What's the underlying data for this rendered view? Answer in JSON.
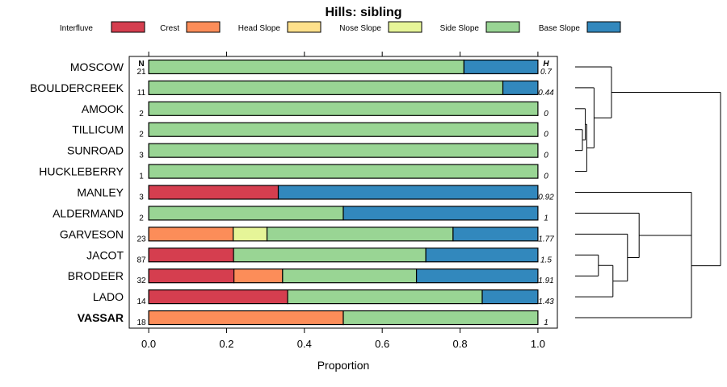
{
  "chart_data": {
    "type": "bar",
    "orientation": "horizontal",
    "stacked": true,
    "title": "Hills: sibling",
    "xlabel": "Proportion",
    "ylabel": "",
    "xlim": [
      -0.05,
      1.05
    ],
    "xticks": [
      "0.0",
      "0.2",
      "0.4",
      "0.6",
      "0.8",
      "1.0"
    ],
    "xtick_values": [
      0,
      0.2,
      0.4,
      0.6,
      0.8,
      1.0
    ],
    "n_header": "N",
    "h_header": "H",
    "legend": [
      {
        "name": "Interfluve",
        "color": "#d53e4f"
      },
      {
        "name": "Crest",
        "color": "#fc8d59"
      },
      {
        "name": "Head Slope",
        "color": "#fee08b"
      },
      {
        "name": "Nose Slope",
        "color": "#e6f598"
      },
      {
        "name": "Side Slope",
        "color": "#99d594"
      },
      {
        "name": "Base Slope",
        "color": "#3288bd"
      }
    ],
    "rows": [
      {
        "label": "MOSCOW",
        "n": "21",
        "h": "0.7",
        "bold": false,
        "values": [
          0,
          0,
          0,
          0,
          0.81,
          0.19
        ]
      },
      {
        "label": "BOULDERCREEK",
        "n": "11",
        "h": "0.44",
        "bold": false,
        "values": [
          0,
          0,
          0,
          0,
          0.91,
          0.09
        ]
      },
      {
        "label": "AMOOK",
        "n": "2",
        "h": "0",
        "bold": false,
        "values": [
          0,
          0,
          0,
          0,
          1.0,
          0
        ]
      },
      {
        "label": "TILLICUM",
        "n": "2",
        "h": "0",
        "bold": false,
        "values": [
          0,
          0,
          0,
          0,
          1.0,
          0
        ]
      },
      {
        "label": "SUNROAD",
        "n": "3",
        "h": "0",
        "bold": false,
        "values": [
          0,
          0,
          0,
          0,
          1.0,
          0
        ]
      },
      {
        "label": "HUCKLEBERRY",
        "n": "1",
        "h": "0",
        "bold": false,
        "values": [
          0,
          0,
          0,
          0,
          1.0,
          0
        ]
      },
      {
        "label": "MANLEY",
        "n": "3",
        "h": "0.92",
        "bold": false,
        "values": [
          0.333,
          0,
          0,
          0,
          0,
          0.667
        ]
      },
      {
        "label": "ALDERMAND",
        "n": "2",
        "h": "1",
        "bold": false,
        "values": [
          0,
          0,
          0,
          0,
          0.5,
          0.5
        ]
      },
      {
        "label": "GARVESON",
        "n": "23",
        "h": "1.77",
        "bold": false,
        "values": [
          0,
          0.217,
          0,
          0.087,
          0.478,
          0.218
        ]
      },
      {
        "label": "JACOT",
        "n": "87",
        "h": "1.5",
        "bold": false,
        "values": [
          0.218,
          0,
          0,
          0,
          0.494,
          0.288
        ]
      },
      {
        "label": "BRODEER",
        "n": "32",
        "h": "1.91",
        "bold": false,
        "values": [
          0.219,
          0.125,
          0,
          0,
          0.344,
          0.312
        ]
      },
      {
        "label": "LADO",
        "n": "14",
        "h": "1.43",
        "bold": false,
        "values": [
          0.357,
          0,
          0,
          0,
          0.5,
          0.143
        ]
      },
      {
        "label": "VASSAR",
        "n": "18",
        "h": "1",
        "bold": true,
        "values": [
          0,
          0.5,
          0,
          0,
          0.5,
          0
        ]
      }
    ],
    "dendrogram": {
      "method": "hierarchical clustering of rows",
      "merges": [
        {
          "a": "TILLICUM",
          "b": "SUNROAD",
          "height": 0.05
        },
        {
          "a": "AMOOK",
          "b": "m0",
          "height": 0.07
        },
        {
          "a": "m1",
          "b": "HUCKLEBERRY",
          "height": 0.08
        },
        {
          "a": "BOULDERCREEK",
          "b": "m2",
          "height": 0.13
        },
        {
          "a": "MOSCOW",
          "b": "m3",
          "height": 0.25
        },
        {
          "a": "JACOT",
          "b": "BRODEER",
          "height": 0.16
        },
        {
          "a": "m5",
          "b": "LADO",
          "height": 0.26
        },
        {
          "a": "GARVESON",
          "b": "m6",
          "height": 0.36
        },
        {
          "a": "ALDERMAND",
          "b": "m7",
          "height": 0.44
        },
        {
          "a": "MANLEY",
          "b": "m8",
          "height": 0.8
        },
        {
          "a": "m9",
          "b": "VASSAR",
          "height": 0.8
        },
        {
          "a": "m4",
          "b": "m10",
          "height": 1.0
        }
      ]
    }
  }
}
